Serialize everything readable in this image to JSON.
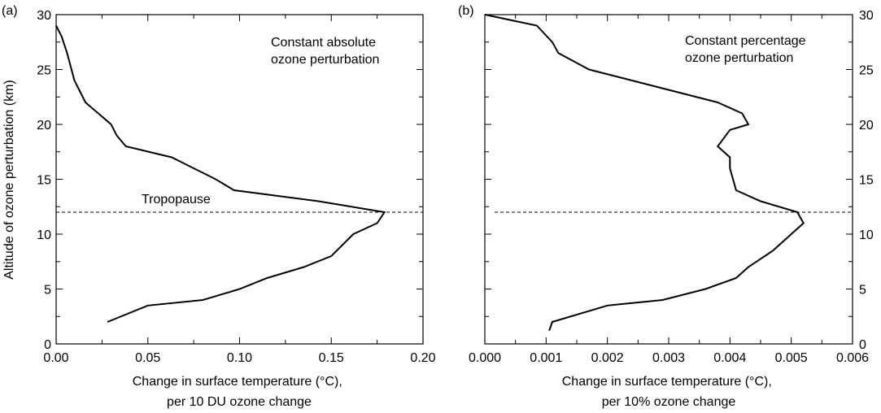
{
  "chart_data": [
    {
      "type": "line",
      "panel_label": "(a)",
      "annotation": [
        "Constant absolute",
        "ozone perturbation"
      ],
      "tropopause_label": "Tropopause",
      "tropopause_altitude": 12,
      "xlabel_lines": [
        "Change in surface temperature (°C),",
        "per 10 DU ozone change"
      ],
      "ylabel": "Altitude of ozone perturbation (km)",
      "xlim": [
        0,
        0.2
      ],
      "ylim": [
        0,
        30
      ],
      "x_ticks": [
        "0.00",
        "0.05",
        "0.10",
        "0.15",
        "0.20"
      ],
      "y_ticks": [
        "0",
        "5",
        "10",
        "15",
        "20",
        "25",
        "30"
      ],
      "grid": false,
      "series": [
        {
          "x": [
            0.028,
            0.05,
            0.08,
            0.1,
            0.115,
            0.135,
            0.15,
            0.162,
            0.175,
            0.179,
            0.143,
            0.097,
            0.087,
            0.075,
            0.063,
            0.038,
            0.033,
            0.03,
            0.023,
            0.016,
            0.01,
            0.006,
            0.003,
            0.0
          ],
          "y": [
            2,
            3.5,
            4,
            5,
            6,
            7,
            8,
            10,
            11,
            12,
            13,
            14,
            15,
            16,
            17,
            18,
            19,
            20,
            21,
            22,
            24,
            26.5,
            28,
            29
          ]
        }
      ]
    },
    {
      "type": "line",
      "panel_label": "(b)",
      "annotation": [
        "Constant percentage",
        "ozone perturbation"
      ],
      "tropopause_altitude": 12,
      "xlabel_lines": [
        "Change in surface temperature (°C),",
        "per 10% ozone change"
      ],
      "xlim": [
        0,
        0.006
      ],
      "ylim": [
        0,
        30
      ],
      "x_ticks": [
        "0.000",
        "0.001",
        "0.002",
        "0.003",
        "0.004",
        "0.005",
        "0.006"
      ],
      "y_ticks": [
        "0",
        "5",
        "10",
        "15",
        "20",
        "25",
        "30"
      ],
      "grid": false,
      "series": [
        {
          "x": [
            0.00105,
            0.0011,
            0.002,
            0.0029,
            0.0036,
            0.0041,
            0.0043,
            0.0047,
            0.005,
            0.0052,
            0.0051,
            0.0045,
            0.0041,
            0.004,
            0.004,
            0.0039,
            0.0038,
            0.004,
            0.0043,
            0.0042,
            0.0038,
            0.0017,
            0.0012,
            0.0011,
            0.00085,
            0.0
          ],
          "y": [
            1.2,
            2,
            3.5,
            4,
            5,
            6,
            7,
            8.5,
            10,
            11,
            12,
            13,
            14,
            16,
            17,
            17.5,
            18,
            19.5,
            20,
            21,
            22,
            25,
            26.5,
            27.5,
            29,
            30
          ]
        }
      ]
    }
  ]
}
